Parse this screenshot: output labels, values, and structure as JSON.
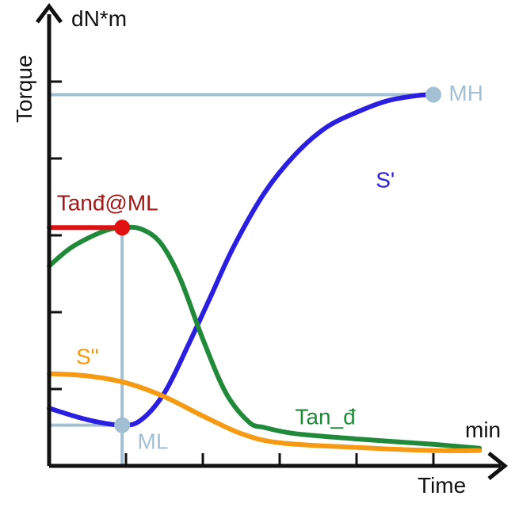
{
  "chart_data": {
    "type": "line",
    "title": "",
    "xlabel": "Time",
    "ylabel": "Torque",
    "x_unit": "min",
    "y_unit": "dN*m",
    "xlim": [
      0,
      6
    ],
    "ylim": [
      0,
      6
    ],
    "grid": false,
    "x_ticks": [
      1,
      2,
      3,
      4,
      5
    ],
    "y_ticks": [
      1,
      2,
      3,
      4,
      5
    ],
    "series": [
      {
        "name": "S'",
        "color": "#2a1fe0",
        "x": [
          0,
          0.5,
          0.95,
          1.2,
          1.5,
          1.8,
          2.1,
          2.4,
          2.8,
          3.2,
          3.6,
          4.0,
          4.4,
          4.8,
          5.0
        ],
        "y": [
          0.75,
          0.6,
          0.53,
          0.6,
          0.95,
          1.55,
          2.2,
          2.85,
          3.55,
          4.05,
          4.4,
          4.6,
          4.75,
          4.82,
          4.83
        ]
      },
      {
        "name": "Tan_d",
        "color": "#218a3a",
        "x": [
          0,
          0.3,
          0.7,
          0.95,
          1.2,
          1.45,
          1.7,
          2.0,
          2.3,
          2.6,
          2.8,
          3.2,
          4.0,
          5.0,
          5.6
        ],
        "y": [
          2.6,
          2.85,
          3.05,
          3.1,
          3.08,
          2.9,
          2.45,
          1.65,
          0.95,
          0.57,
          0.5,
          0.42,
          0.35,
          0.28,
          0.23
        ]
      },
      {
        "name": "S\"",
        "color": "#f59a12",
        "x": [
          0,
          0.5,
          1.0,
          1.5,
          2.0,
          2.5,
          3.0,
          4.0,
          5.0,
          5.6
        ],
        "y": [
          1.2,
          1.17,
          1.08,
          0.9,
          0.65,
          0.42,
          0.3,
          0.24,
          0.2,
          0.2
        ]
      },
      {
        "name": "Tanđ@ML",
        "color": "#e01010",
        "x": [
          0,
          0.95
        ],
        "y": [
          3.1,
          3.1
        ]
      }
    ],
    "reference_lines": [
      {
        "name": "MH",
        "axis": "y",
        "value": 4.83,
        "x_end": 5.0,
        "color": "#a3bfd3"
      },
      {
        "name": "ML",
        "axis": "x",
        "value": 0.95,
        "y_end": 3.1,
        "color": "#a3bfd3"
      },
      {
        "name": "ML-level",
        "axis": "y",
        "value": 0.53,
        "x_end": 0.95,
        "color": "#a3bfd3"
      }
    ],
    "markers": [
      {
        "label": "MH",
        "x": 5.0,
        "y": 4.83,
        "color": "#a3bfd3"
      },
      {
        "label": "ML",
        "x": 0.95,
        "y": 0.53,
        "color": "#a3bfd3"
      },
      {
        "label": "Tanđ@ML",
        "x": 0.95,
        "y": 3.1,
        "color": "#e01010"
      }
    ],
    "annotations": [
      {
        "text": "S'",
        "x": 4.25,
        "y": 3.7,
        "color": "#2a1fe0"
      },
      {
        "text": "Tan_đ",
        "x": 3.2,
        "y": 0.62,
        "color": "#218a3a"
      },
      {
        "text": "S\"",
        "x": 0.35,
        "y": 1.4,
        "color": "#f59a12"
      },
      {
        "text": "MH",
        "x": 5.2,
        "y": 4.83,
        "color": "#a3bfd3"
      },
      {
        "text": "ML",
        "x": 1.15,
        "y": 0.3,
        "color": "#a3bfd3"
      },
      {
        "text": "Tanđ@ML",
        "x": 0.1,
        "y": 3.4,
        "color": "#a01818"
      }
    ]
  }
}
